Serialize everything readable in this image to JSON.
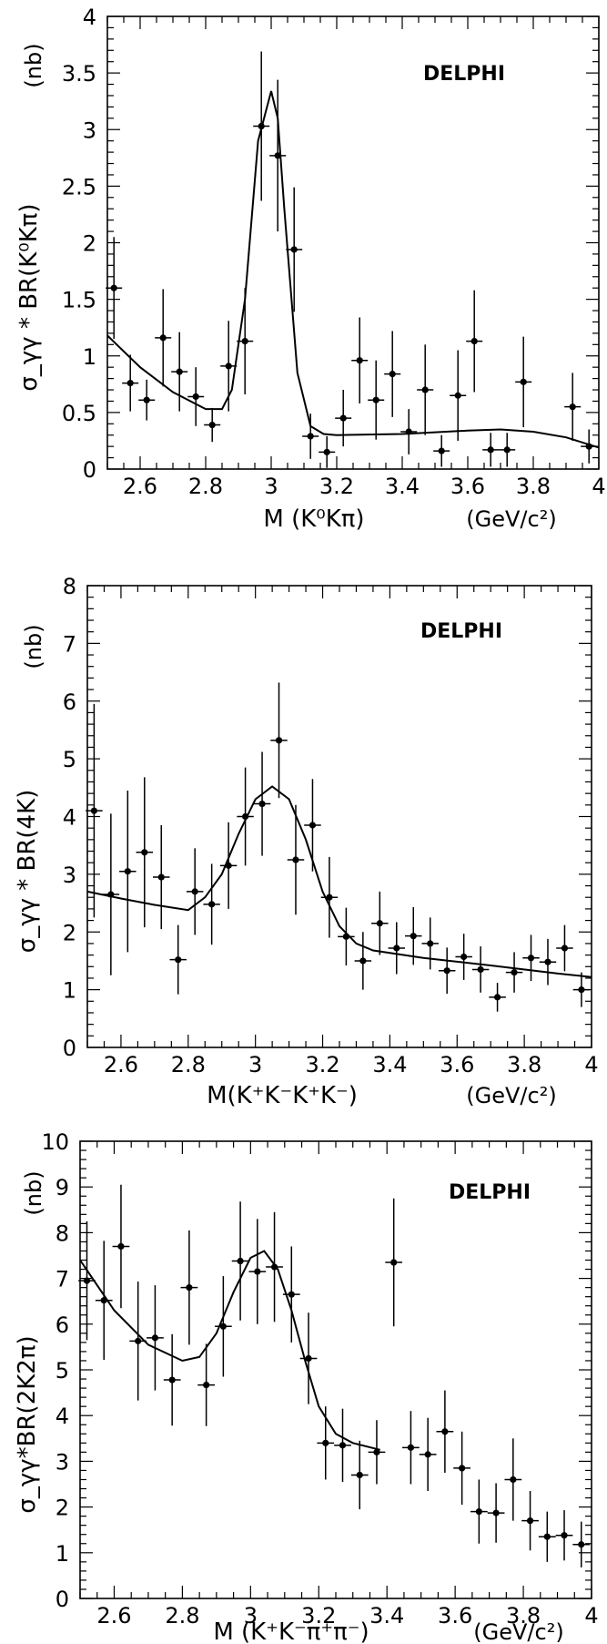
{
  "chart_data": [
    {
      "type": "scatter",
      "experiment": "DELPHI",
      "ylabel": "σ_γγ * BR(K⁰Kπ)",
      "yunit": "(nb)",
      "xlabel": "M (K⁰Kπ)",
      "xunit": "(GeV/c²)",
      "xlim": [
        2.5,
        4.0
      ],
      "ylim": [
        0,
        4
      ],
      "xticks": [
        2.6,
        2.8,
        3.0,
        3.2,
        3.4,
        3.6,
        3.8,
        4.0
      ],
      "yticks": [
        0,
        0.5,
        1,
        1.5,
        2,
        2.5,
        3,
        3.5,
        4
      ],
      "series": [
        {
          "x": [
            2.52,
            2.57,
            2.62,
            2.67,
            2.72,
            2.77,
            2.82,
            2.87,
            2.92,
            2.97,
            3.02,
            3.07,
            3.12,
            3.17,
            3.22,
            3.27,
            3.32,
            3.37,
            3.42,
            3.47,
            3.52,
            3.57,
            3.62,
            3.67,
            3.72,
            3.77,
            3.92,
            3.97
          ],
          "y": [
            1.6,
            0.76,
            0.61,
            1.16,
            0.86,
            0.64,
            0.39,
            0.91,
            1.13,
            3.03,
            2.77,
            1.94,
            0.29,
            0.15,
            0.45,
            0.96,
            0.61,
            0.84,
            0.33,
            0.7,
            0.16,
            0.65,
            1.13,
            0.17,
            0.17,
            0.77,
            0.55,
            0.2
          ],
          "yerr": [
            0.45,
            0.25,
            0.18,
            0.43,
            0.35,
            0.26,
            0.15,
            0.4,
            0.47,
            0.66,
            0.67,
            0.55,
            0.2,
            0.14,
            0.25,
            0.38,
            0.35,
            0.38,
            0.2,
            0.4,
            0.14,
            0.4,
            0.45,
            0.15,
            0.15,
            0.4,
            0.3,
            0.15
          ]
        },
        {
          "kind": "fit",
          "x": [
            2.5,
            2.6,
            2.7,
            2.8,
            2.85,
            2.88,
            2.92,
            2.96,
            3.0,
            3.02,
            3.04,
            3.08,
            3.12,
            3.16,
            3.2,
            3.4,
            3.6,
            3.7,
            3.8,
            3.9,
            4.0
          ],
          "y": [
            1.18,
            0.9,
            0.68,
            0.53,
            0.53,
            0.7,
            1.5,
            2.9,
            3.34,
            3.1,
            2.3,
            0.85,
            0.38,
            0.31,
            0.3,
            0.31,
            0.34,
            0.35,
            0.33,
            0.28,
            0.19
          ]
        }
      ]
    },
    {
      "type": "scatter",
      "experiment": "DELPHI",
      "ylabel": "σ_γγ * BR(4K)",
      "yunit": "(nb)",
      "xlabel": "M(K⁺K⁻K⁺K⁻)",
      "xunit": "(GeV/c²)",
      "xlim": [
        2.5,
        4.0
      ],
      "ylim": [
        0,
        8
      ],
      "xticks": [
        2.6,
        2.8,
        3.0,
        3.2,
        3.4,
        3.6,
        3.8,
        4.0
      ],
      "yticks": [
        0,
        1,
        2,
        3,
        4,
        5,
        6,
        7,
        8
      ],
      "series": [
        {
          "x": [
            2.52,
            2.57,
            2.62,
            2.67,
            2.72,
            2.77,
            2.82,
            2.87,
            2.92,
            2.97,
            3.02,
            3.07,
            3.12,
            3.17,
            3.22,
            3.27,
            3.32,
            3.37,
            3.42,
            3.47,
            3.52,
            3.57,
            3.62,
            3.67,
            3.72,
            3.77,
            3.82,
            3.87,
            3.92,
            3.97
          ],
          "y": [
            4.1,
            2.65,
            3.05,
            3.38,
            2.95,
            1.52,
            2.7,
            2.48,
            3.15,
            4.0,
            4.22,
            5.32,
            3.25,
            3.85,
            2.6,
            1.92,
            1.5,
            2.15,
            1.72,
            1.93,
            1.8,
            1.33,
            1.57,
            1.35,
            0.87,
            1.3,
            1.55,
            1.48,
            1.72,
            1.0
          ],
          "yerr": [
            1.85,
            1.4,
            1.4,
            1.3,
            0.9,
            0.6,
            0.75,
            0.7,
            0.75,
            0.85,
            0.9,
            1.0,
            0.95,
            0.8,
            0.7,
            0.5,
            0.5,
            0.55,
            0.45,
            0.5,
            0.45,
            0.4,
            0.4,
            0.4,
            0.25,
            0.35,
            0.4,
            0.4,
            0.4,
            0.3
          ]
        },
        {
          "kind": "fit",
          "x": [
            2.5,
            2.6,
            2.7,
            2.8,
            2.85,
            2.9,
            2.95,
            3.0,
            3.05,
            3.1,
            3.15,
            3.2,
            3.25,
            3.3,
            3.35,
            3.5,
            3.7,
            3.9,
            4.0
          ],
          "y": [
            2.7,
            2.58,
            2.47,
            2.38,
            2.6,
            3.0,
            3.7,
            4.3,
            4.52,
            4.3,
            3.6,
            2.7,
            2.1,
            1.8,
            1.68,
            1.55,
            1.42,
            1.28,
            1.22
          ]
        }
      ]
    },
    {
      "type": "scatter",
      "experiment": "DELPHI",
      "ylabel": "σ_γγ*BR(2K2π)",
      "yunit": "(nb)",
      "xlabel": "M (K⁺K⁻π⁺π⁻)",
      "xunit": "(GeV/c²)",
      "xlim": [
        2.5,
        4.0
      ],
      "ylim": [
        0,
        10
      ],
      "xticks": [
        2.6,
        2.8,
        3.0,
        3.2,
        3.4,
        3.6,
        3.8,
        4.0
      ],
      "yticks": [
        0,
        1,
        2,
        3,
        4,
        5,
        6,
        7,
        8,
        9,
        10
      ],
      "series": [
        {
          "x": [
            2.52,
            2.57,
            2.62,
            2.67,
            2.72,
            2.77,
            2.82,
            2.87,
            2.92,
            2.97,
            3.02,
            3.07,
            3.12,
            3.17,
            3.22,
            3.27,
            3.32,
            3.37,
            3.42,
            3.47,
            3.52,
            3.57,
            3.62,
            3.67,
            3.72,
            3.77,
            3.82,
            3.87,
            3.92,
            3.97
          ],
          "y": [
            6.95,
            6.52,
            7.7,
            5.63,
            5.7,
            4.78,
            6.8,
            4.67,
            5.95,
            7.38,
            7.15,
            7.25,
            6.65,
            5.25,
            3.4,
            3.35,
            2.7,
            3.2,
            7.35,
            3.3,
            3.15,
            3.65,
            2.85,
            1.9,
            1.87,
            2.6,
            1.7,
            1.35,
            1.38,
            1.18
          ],
          "yerr": [
            1.3,
            1.3,
            1.35,
            1.3,
            1.15,
            1.0,
            1.25,
            0.9,
            1.1,
            1.3,
            1.15,
            1.2,
            1.05,
            1.0,
            0.8,
            0.8,
            0.75,
            0.7,
            1.4,
            0.8,
            0.8,
            0.9,
            0.8,
            0.7,
            0.65,
            0.9,
            0.65,
            0.55,
            0.55,
            0.5
          ]
        },
        {
          "kind": "fit",
          "x": [
            2.5,
            2.6,
            2.7,
            2.8,
            2.85,
            2.9,
            2.95,
            3.0,
            3.04,
            3.08,
            3.12,
            3.16,
            3.2,
            3.25,
            3.3,
            3.38
          ],
          "y": [
            7.4,
            6.3,
            5.55,
            5.2,
            5.28,
            5.8,
            6.7,
            7.45,
            7.6,
            7.2,
            6.3,
            5.2,
            4.2,
            3.6,
            3.4,
            3.25
          ]
        }
      ]
    }
  ]
}
